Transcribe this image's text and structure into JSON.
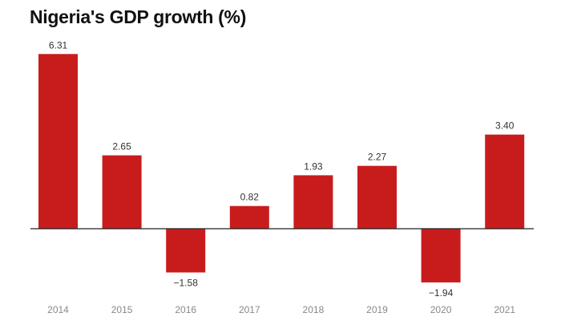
{
  "chart_data": {
    "type": "bar",
    "title": "Nigeria's GDP growth (%)",
    "categories": [
      "2014",
      "2015",
      "2016",
      "2017",
      "2018",
      "2019",
      "2020",
      "2021"
    ],
    "values": [
      6.31,
      2.65,
      -1.58,
      0.82,
      1.93,
      2.27,
      -1.94,
      3.4
    ],
    "data_labels": [
      "6.31",
      "2.65",
      "−1.58",
      "0.82",
      "1.93",
      "2.27",
      "−1.94",
      "3.40"
    ],
    "xlabel": "",
    "ylabel": "",
    "grid": false,
    "bar_color": "#c81c1c"
  }
}
